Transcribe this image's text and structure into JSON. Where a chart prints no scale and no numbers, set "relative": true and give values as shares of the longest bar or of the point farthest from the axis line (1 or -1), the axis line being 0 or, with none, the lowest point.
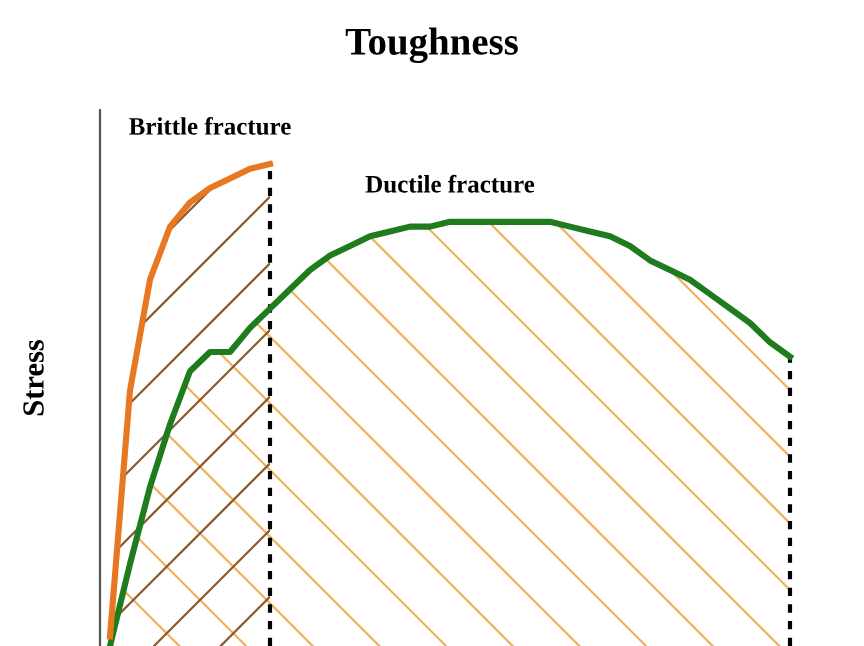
{
  "chart_data": {
    "type": "area",
    "title": "Toughness",
    "ylabel": "Stress",
    "relative": true,
    "categories": [
      null,
      null,
      null,
      null,
      null,
      null,
      null,
      null,
      null,
      null,
      null,
      null,
      null,
      null,
      null,
      null,
      null,
      null,
      null,
      null,
      null,
      null,
      null,
      null,
      null,
      null,
      null,
      null,
      null,
      null,
      null,
      null,
      null,
      null,
      null
    ],
    "series": [
      {
        "name": "Ductile fracture",
        "color": "#1e7b1e",
        "values": [
          0.0,
          0.17,
          0.33,
          0.46,
          0.57,
          0.61,
          0.61,
          0.66,
          0.7,
          0.74,
          0.78,
          0.81,
          0.83,
          0.85,
          0.86,
          0.87,
          0.87,
          0.88,
          0.88,
          0.88,
          0.88,
          0.88,
          0.88,
          0.87,
          0.86,
          0.85,
          0.83,
          0.8,
          0.78,
          0.76,
          0.73,
          0.7,
          0.67,
          0.63,
          0.6
        ]
      },
      {
        "name": "Brittle fracture",
        "color": "#e87722",
        "values": [
          0.02,
          0.53,
          0.76,
          0.87,
          0.92,
          0.95,
          0.97,
          0.99,
          1.0,
          null,
          null,
          null,
          null,
          null,
          null,
          null,
          null,
          null,
          null,
          null,
          null,
          null,
          null,
          null,
          null,
          null,
          null,
          null,
          null,
          null,
          null,
          null,
          null,
          null,
          null
        ]
      }
    ],
    "legend": false
  }
}
